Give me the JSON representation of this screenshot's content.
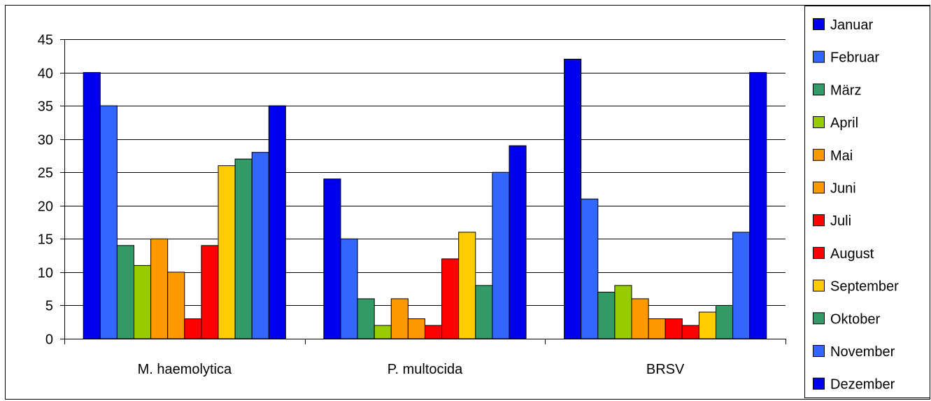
{
  "chart_data": {
    "type": "bar",
    "title": "",
    "xlabel": "",
    "ylabel": "",
    "ylim": [
      0,
      45
    ],
    "yticks": [
      "0",
      "5",
      "10",
      "15",
      "20",
      "25",
      "30",
      "35",
      "40",
      "45"
    ],
    "grid": true,
    "legend_position": "right",
    "categories": [
      "M. haemolytica",
      "P. multocida",
      "BRSV"
    ],
    "series": [
      {
        "name": "Januar",
        "color": "#0000ee",
        "values": [
          40,
          24,
          42
        ]
      },
      {
        "name": "Februar",
        "color": "#3366ff",
        "values": [
          35,
          15,
          21
        ]
      },
      {
        "name": "März",
        "color": "#339966",
        "values": [
          14,
          6,
          7
        ]
      },
      {
        "name": "April",
        "color": "#99cc00",
        "values": [
          11,
          2,
          8
        ]
      },
      {
        "name": "Mai",
        "color": "#ff9900",
        "values": [
          15,
          6,
          6
        ]
      },
      {
        "name": "Juni",
        "color": "#ff9900",
        "values": [
          10,
          3,
          3
        ]
      },
      {
        "name": "Juli",
        "color": "#ff0000",
        "values": [
          3,
          2,
          3
        ]
      },
      {
        "name": "August",
        "color": "#ff0000",
        "values": [
          14,
          12,
          2
        ]
      },
      {
        "name": "September",
        "color": "#ffcc00",
        "values": [
          26,
          16,
          4
        ]
      },
      {
        "name": "Oktober",
        "color": "#339966",
        "values": [
          27,
          8,
          5
        ]
      },
      {
        "name": "November",
        "color": "#3366ff",
        "values": [
          28,
          25,
          16
        ]
      },
      {
        "name": "Dezember",
        "color": "#0000ee",
        "values": [
          35,
          29,
          40
        ]
      }
    ]
  }
}
